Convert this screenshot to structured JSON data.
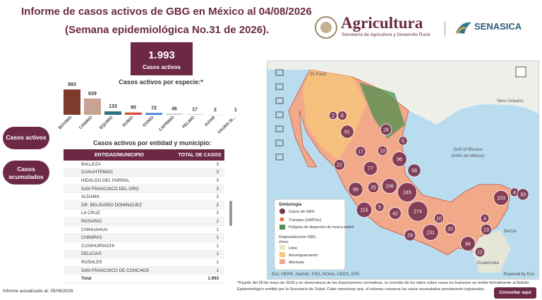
{
  "header": {
    "title": "Informe de casos activos de GBG en México al 04/08/2026",
    "subtitle": "(Semana epidemiológica No.31 de 2026).",
    "logo_main": "Agricultura",
    "logo_sub": "Secretaría de Agricultura y Desarrollo Rural",
    "logo_senasica": "SENASICA"
  },
  "kpi": {
    "value": "1.993",
    "label": "Casos activos"
  },
  "chart_data": {
    "type": "bar",
    "title": "Casos activos por especie:*",
    "categories": [
      "BOVINO",
      "CANINO",
      "EQUINO",
      "SUINO",
      "OVINO",
      "CAPRINO",
      "FELINO",
      "AVIAR",
      "FAUNA SI..."
    ],
    "values": [
      993,
      639,
      133,
      90,
      72,
      46,
      17,
      2,
      1
    ],
    "colors": [
      "#7d3b2c",
      "#c8a293",
      "#2f6f7e",
      "#d84b3c",
      "#3f7fd0",
      "#c9c9d6",
      "#b9b3e0",
      "#d9d9d9",
      "#e6e6e6"
    ]
  },
  "buttons": {
    "active": "Casos activos",
    "cumulative": "Casos acumulados",
    "consult": "Consultar aquí"
  },
  "table": {
    "title": "Casos activos por entidad y municipio:",
    "columns": [
      "ENTIDAD/MUNICIPIO",
      "TOTAL DE CASOS"
    ],
    "rows": [
      [
        "BALLEZA",
        "3"
      ],
      [
        "CUAUHTEMOC",
        "3"
      ],
      [
        "HIDALGO DEL PARRAL",
        "3"
      ],
      [
        "SAN FRANCISCO DEL ORO",
        "3"
      ],
      [
        "ALDAMA",
        "2"
      ],
      [
        "DR. BELISARIO DOMINGUEZ",
        "2"
      ],
      [
        "LA CRUZ",
        "2"
      ],
      [
        "ROSARIO",
        "2"
      ],
      [
        "CHIHUAHUA",
        "1"
      ],
      [
        "CHINIPAS",
        "1"
      ],
      [
        "CUSIHUIRIACHI",
        "1"
      ],
      [
        "DELICIAS",
        "1"
      ],
      [
        "ROSALES",
        "1"
      ],
      [
        "SAN FRANCISCO DE CONCHOS",
        "1"
      ]
    ],
    "total": [
      "Total",
      "1.993"
    ]
  },
  "map": {
    "bubbles": [
      "2",
      "8",
      "61",
      "28",
      "17",
      "10",
      "96",
      "5",
      "58",
      "77",
      "22",
      "89",
      "25",
      "106",
      "245",
      "115",
      "42",
      "274",
      "5",
      "29",
      "131",
      "10",
      "20",
      "94",
      "12",
      "23",
      "4",
      "103",
      "4",
      "33"
    ],
    "places": [
      "El Paso",
      "New Orleans",
      "Gulf of Mexico",
      "Golfo de México",
      "Belize",
      "Guatemala"
    ],
    "legend": {
      "title": "Simbología",
      "cases": "Casos de GBG",
      "traps": "Trampas (SARTec)",
      "polygon": "Polígono de dispersión de mosca estéril",
      "region": "Regionalización GBG",
      "zone": "Zona:",
      "free": "Libre",
      "buffer": "Amortiguamiento",
      "affected": "Afectada"
    },
    "attribution": "Esri, HERE, Garmin, FAO, NOAA, USGS, EPA",
    "powered": "Powered by Esri"
  },
  "note": "*A partir del 28 de mayo de 2026 y en observancia de las disposiciones normativas, la consulta de los datos sobre casos en humanos se remite formalmente al Boletín Epidemiológico emitido por la Secretaría de Salud. Cabe mencionar que, el sistema conserva los casos acumulados previamente registrados.",
  "footer": "Informe actualizado al: 05/08/2026"
}
